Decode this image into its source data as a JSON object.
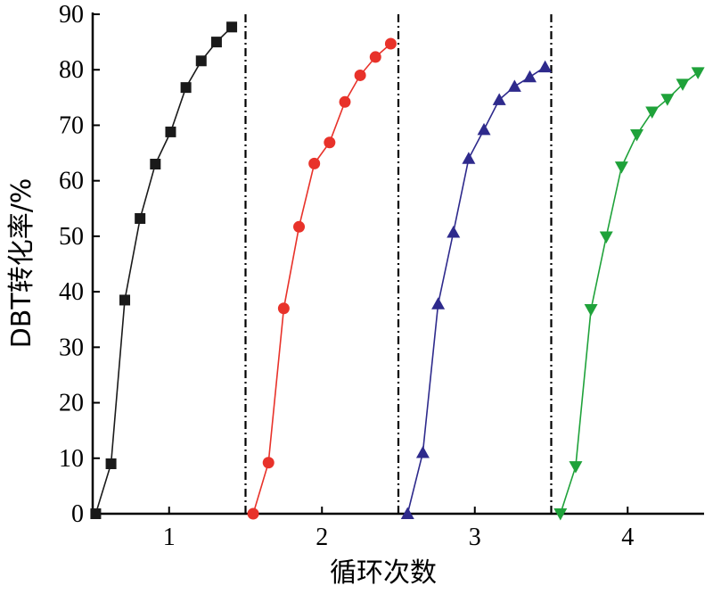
{
  "chart_data": {
    "type": "line",
    "title": "",
    "xlabel": "循环次数",
    "ylabel": "DBT转化率/%",
    "ylim": [
      0,
      90
    ],
    "yticks": [
      0,
      10,
      20,
      30,
      40,
      50,
      60,
      70,
      80,
      90
    ],
    "xlim": [
      0.5,
      4.5
    ],
    "xticks": [
      1,
      2,
      3,
      4
    ],
    "xtick_labels": [
      "1",
      "2",
      "3",
      "4"
    ],
    "cycle_separators": [
      1.5,
      2.5,
      3.5
    ],
    "grid": false,
    "legend": "none",
    "series": [
      {
        "color": "#1a1a1a",
        "marker": "square",
        "x": [
          0.52,
          0.62,
          0.71,
          0.81,
          0.91,
          1.01,
          1.11,
          1.21,
          1.31,
          1.41
        ],
        "y": [
          0,
          9,
          38.5,
          53.2,
          63,
          68.8,
          76.8,
          81.6,
          85,
          87.7
        ]
      },
      {
        "color": "#e8322a",
        "marker": "circle",
        "x": [
          1.55,
          1.65,
          1.75,
          1.85,
          1.95,
          2.05,
          2.15,
          2.25,
          2.35,
          2.45
        ],
        "y": [
          0,
          9.2,
          37,
          51.7,
          63.1,
          66.9,
          74.2,
          79,
          82.3,
          84.7
        ]
      },
      {
        "color": "#2e2a8c",
        "marker": "triangle-up",
        "x": [
          2.56,
          2.66,
          2.76,
          2.86,
          2.96,
          3.06,
          3.16,
          3.26,
          3.36,
          3.46
        ],
        "y": [
          0,
          11,
          37.8,
          50.7,
          64,
          69.2,
          74.6,
          77,
          78.7,
          80.5
        ]
      },
      {
        "color": "#1fa23a",
        "marker": "triangle-down",
        "x": [
          3.56,
          3.66,
          3.76,
          3.86,
          3.96,
          4.06,
          4.16,
          4.26,
          4.36,
          4.46
        ],
        "y": [
          0,
          8.5,
          36.8,
          49.9,
          62.5,
          68.3,
          72.4,
          74.7,
          77.4,
          79.5
        ]
      }
    ]
  }
}
